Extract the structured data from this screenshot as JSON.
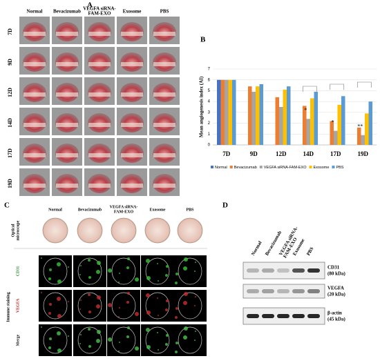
{
  "panels": {
    "a": {
      "letter": "A",
      "columns": [
        [
          "Normal"
        ],
        [
          "Bevacizumab"
        ],
        [
          "VEGFA siRNA-",
          "FAM-EXO"
        ],
        [
          "Exosome"
        ],
        [
          "PBS"
        ]
      ],
      "rows": [
        "7D",
        "9D",
        "12D",
        "14D",
        "17D",
        "19D"
      ]
    },
    "c": {
      "letter": "C",
      "columns": [
        [
          "Normal"
        ],
        [
          "Bevacizumab"
        ],
        [
          "VEGFA siRNA-",
          "FAM-EXO"
        ],
        [
          "Exosome"
        ],
        [
          "PBS"
        ]
      ],
      "optical": [
        "Optical",
        "microscope"
      ],
      "immune": "Immune staining",
      "channels": [
        "CD31",
        "VEGFA",
        "Merge"
      ]
    },
    "d": {
      "letter": "D",
      "lanes": [
        [
          "Normal"
        ],
        [
          "Bevacizumab"
        ],
        [
          "VEGFA siRNA-",
          "FAM-EXO"
        ],
        [
          "Exosome"
        ],
        [
          "PBS"
        ]
      ],
      "bands": [
        [
          "CD31",
          "(80 kDa)"
        ],
        [
          "VEGFA",
          "(20 kDa)"
        ],
        [
          "β-actin",
          "(45 kDa)"
        ]
      ]
    }
  },
  "chart_data": {
    "type": "bar",
    "letter": "B",
    "y_label": "Mean angiogenesis index (AI)",
    "categories": [
      "7D",
      "9D",
      "12D",
      "14D",
      "17D",
      "19D"
    ],
    "series": [
      {
        "name": "Normal",
        "color": "#4472c4",
        "values": [
          6,
          null,
          null,
          null,
          null,
          null
        ]
      },
      {
        "name": "Bevacizumab",
        "color": "#ed7d31",
        "values": [
          6,
          5.4,
          4.4,
          3.6,
          2.2,
          1.6
        ]
      },
      {
        "name": "VEGFA siRNA-FAM-EXO",
        "color": "#a5a5a5",
        "values": [
          6,
          4.9,
          3.5,
          2.4,
          1.3,
          0.9
        ]
      },
      {
        "name": "Exosome",
        "color": "#ffc000",
        "values": [
          6,
          5.4,
          5.1,
          4.3,
          3.7,
          2.9
        ]
      },
      {
        "name": "PBS",
        "color": "#5b9bd5",
        "values": [
          6,
          5.6,
          5.4,
          4.9,
          4.5,
          4.0
        ]
      }
    ],
    "ylim": [
      0,
      7
    ],
    "yticks": [
      0,
      1,
      2,
      3,
      4,
      5,
      6,
      7
    ],
    "annotations": [
      "*",
      "*",
      "**"
    ]
  }
}
